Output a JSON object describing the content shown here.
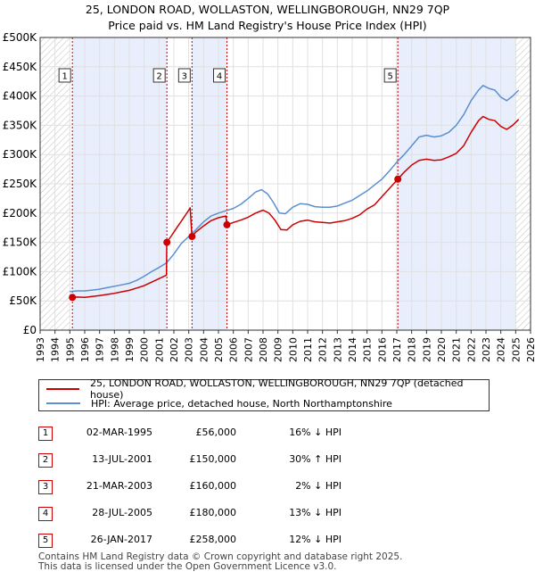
{
  "header": {
    "title": "25, LONDON ROAD, WOLLASTON, WELLINGBOROUGH, NN29 7QP",
    "subtitle": "Price paid vs. HM Land Registry's House Price Index (HPI)"
  },
  "chart_data": {
    "type": "line",
    "title": "25, LONDON ROAD, WOLLASTON, WELLINGBOROUGH, NN29 7QP",
    "subtitle": "Price paid vs. HM Land Registry's House Price Index (HPI)",
    "xlim": [
      1993,
      2026
    ],
    "ylim": [
      0,
      500000
    ],
    "x_ticks": [
      "1993",
      "1994",
      "1995",
      "1996",
      "1997",
      "1998",
      "1999",
      "2000",
      "2001",
      "2002",
      "2003",
      "2004",
      "2005",
      "2006",
      "2007",
      "2008",
      "2009",
      "2010",
      "2011",
      "2012",
      "2013",
      "2014",
      "2015",
      "2016",
      "2017",
      "2018",
      "2019",
      "2020",
      "2021",
      "2022",
      "2023",
      "2024",
      "2025",
      "2026"
    ],
    "y_ticks": [
      {
        "value": 0,
        "label": "£0"
      },
      {
        "value": 50000,
        "label": "£50K"
      },
      {
        "value": 100000,
        "label": "£100K"
      },
      {
        "value": 150000,
        "label": "£150K"
      },
      {
        "value": 200000,
        "label": "£200K"
      },
      {
        "value": 250000,
        "label": "£250K"
      },
      {
        "value": 300000,
        "label": "£300K"
      },
      {
        "value": 350000,
        "label": "£350K"
      },
      {
        "value": 400000,
        "label": "£400K"
      },
      {
        "value": 450000,
        "label": "£450K"
      },
      {
        "value": 500000,
        "label": "£500K"
      }
    ],
    "grid": true,
    "colors": {
      "property": "#cc0000",
      "hpi": "#5b8fd0",
      "shade": "#e8eefb",
      "hatch": "#bbbbbb"
    },
    "series": [
      {
        "name": "25, LONDON ROAD, WOLLASTON, WELLINGBOROUGH, NN29 7QP (detached house)",
        "color": "#cc0000",
        "points": [
          [
            1995.17,
            56000
          ],
          [
            1995.5,
            56500
          ],
          [
            1996.0,
            56000
          ],
          [
            1996.5,
            57500
          ],
          [
            1997.0,
            59000
          ],
          [
            1997.5,
            61000
          ],
          [
            1998.0,
            63000
          ],
          [
            1998.5,
            65500
          ],
          [
            1999.0,
            68000
          ],
          [
            1999.5,
            72000
          ],
          [
            2000.0,
            76000
          ],
          [
            2000.5,
            82000
          ],
          [
            2001.0,
            88000
          ],
          [
            2001.5,
            94000
          ],
          [
            2001.52,
            150000
          ],
          [
            2001.8,
            160000
          ],
          [
            2002.2,
            175000
          ],
          [
            2002.6,
            190000
          ],
          [
            2003.0,
            205000
          ],
          [
            2003.1,
            209000
          ],
          [
            2003.21,
            160000
          ],
          [
            2003.5,
            168000
          ],
          [
            2004.0,
            178000
          ],
          [
            2004.5,
            187000
          ],
          [
            2005.0,
            192000
          ],
          [
            2005.5,
            195000
          ],
          [
            2005.57,
            180000
          ],
          [
            2006.0,
            184000
          ],
          [
            2006.5,
            188000
          ],
          [
            2007.0,
            193000
          ],
          [
            2007.5,
            200000
          ],
          [
            2008.0,
            205000
          ],
          [
            2008.4,
            200000
          ],
          [
            2008.8,
            188000
          ],
          [
            2009.2,
            172000
          ],
          [
            2009.6,
            171000
          ],
          [
            2010.0,
            180000
          ],
          [
            2010.5,
            186000
          ],
          [
            2011.0,
            188000
          ],
          [
            2011.5,
            185000
          ],
          [
            2012.0,
            184000
          ],
          [
            2012.5,
            183000
          ],
          [
            2013.0,
            185000
          ],
          [
            2013.5,
            187000
          ],
          [
            2014.0,
            191000
          ],
          [
            2014.5,
            197000
          ],
          [
            2015.0,
            207000
          ],
          [
            2015.5,
            214000
          ],
          [
            2016.0,
            228000
          ],
          [
            2016.5,
            242000
          ],
          [
            2017.07,
            258000
          ],
          [
            2017.5,
            270000
          ],
          [
            2018.0,
            282000
          ],
          [
            2018.5,
            290000
          ],
          [
            2019.0,
            292000
          ],
          [
            2019.5,
            290000
          ],
          [
            2020.0,
            291000
          ],
          [
            2020.5,
            296000
          ],
          [
            2021.0,
            302000
          ],
          [
            2021.5,
            315000
          ],
          [
            2022.0,
            338000
          ],
          [
            2022.5,
            358000
          ],
          [
            2022.8,
            365000
          ],
          [
            2023.2,
            360000
          ],
          [
            2023.6,
            358000
          ],
          [
            2024.0,
            348000
          ],
          [
            2024.4,
            343000
          ],
          [
            2024.8,
            350000
          ],
          [
            2025.2,
            360000
          ]
        ]
      },
      {
        "name": "HPI: Average price, detached house, North Northamptonshire",
        "color": "#5b8fd0",
        "points": [
          [
            1995.0,
            66000
          ],
          [
            1995.5,
            67000
          ],
          [
            1996.0,
            67000
          ],
          [
            1996.5,
            68500
          ],
          [
            1997.0,
            70000
          ],
          [
            1997.5,
            72500
          ],
          [
            1998.0,
            75000
          ],
          [
            1998.5,
            77500
          ],
          [
            1999.0,
            80000
          ],
          [
            1999.5,
            85000
          ],
          [
            2000.0,
            92000
          ],
          [
            2000.5,
            100000
          ],
          [
            2001.0,
            107000
          ],
          [
            2001.5,
            115000
          ],
          [
            2002.0,
            130000
          ],
          [
            2002.5,
            148000
          ],
          [
            2003.0,
            160000
          ],
          [
            2003.5,
            172000
          ],
          [
            2004.0,
            185000
          ],
          [
            2004.5,
            195000
          ],
          [
            2005.0,
            200000
          ],
          [
            2005.5,
            204000
          ],
          [
            2006.0,
            208000
          ],
          [
            2006.5,
            215000
          ],
          [
            2007.0,
            225000
          ],
          [
            2007.5,
            236000
          ],
          [
            2007.9,
            240000
          ],
          [
            2008.3,
            233000
          ],
          [
            2008.7,
            218000
          ],
          [
            2009.1,
            200000
          ],
          [
            2009.5,
            199000
          ],
          [
            2010.0,
            210000
          ],
          [
            2010.5,
            216000
          ],
          [
            2011.0,
            215000
          ],
          [
            2011.5,
            211000
          ],
          [
            2012.0,
            210000
          ],
          [
            2012.5,
            210000
          ],
          [
            2013.0,
            212000
          ],
          [
            2013.5,
            217000
          ],
          [
            2014.0,
            222000
          ],
          [
            2014.5,
            230000
          ],
          [
            2015.0,
            238000
          ],
          [
            2015.5,
            248000
          ],
          [
            2016.0,
            258000
          ],
          [
            2016.5,
            272000
          ],
          [
            2017.0,
            287000
          ],
          [
            2017.5,
            300000
          ],
          [
            2018.0,
            315000
          ],
          [
            2018.5,
            330000
          ],
          [
            2019.0,
            333000
          ],
          [
            2019.5,
            330000
          ],
          [
            2020.0,
            332000
          ],
          [
            2020.5,
            338000
          ],
          [
            2021.0,
            350000
          ],
          [
            2021.5,
            368000
          ],
          [
            2022.0,
            392000
          ],
          [
            2022.5,
            410000
          ],
          [
            2022.8,
            418000
          ],
          [
            2023.2,
            413000
          ],
          [
            2023.6,
            410000
          ],
          [
            2024.0,
            398000
          ],
          [
            2024.4,
            392000
          ],
          [
            2024.8,
            400000
          ],
          [
            2025.2,
            410000
          ]
        ]
      }
    ],
    "sales": [
      {
        "n": "1",
        "x": 1995.17,
        "price": 56000
      },
      {
        "n": "2",
        "x": 2001.53,
        "price": 150000
      },
      {
        "n": "3",
        "x": 2003.22,
        "price": 160000
      },
      {
        "n": "4",
        "x": 2005.57,
        "price": 180000
      },
      {
        "n": "5",
        "x": 2017.07,
        "price": 258000
      }
    ],
    "hatched_ranges": [
      [
        1993,
        1995
      ],
      [
        2025,
        2026
      ]
    ],
    "shaded_ranges": [
      [
        1995.17,
        2001.53
      ],
      [
        2003.22,
        2005.57
      ],
      [
        2017.07,
        2025
      ]
    ]
  },
  "legend": {
    "property_label": "25, LONDON ROAD, WOLLASTON, WELLINGBOROUGH, NN29 7QP (detached house)",
    "hpi_label": "HPI: Average price, detached house, North Northamptonshire"
  },
  "sales_table": [
    {
      "n": "1",
      "date": "02-MAR-1995",
      "price": "£56,000",
      "hpi": "16% ↓ HPI"
    },
    {
      "n": "2",
      "date": "13-JUL-2001",
      "price": "£150,000",
      "hpi": "30% ↑ HPI"
    },
    {
      "n": "3",
      "date": "21-MAR-2003",
      "price": "£160,000",
      "hpi": "2% ↓ HPI"
    },
    {
      "n": "4",
      "date": "28-JUL-2005",
      "price": "£180,000",
      "hpi": "13% ↓ HPI"
    },
    {
      "n": "5",
      "date": "26-JAN-2017",
      "price": "£258,000",
      "hpi": "12% ↓ HPI"
    }
  ],
  "footer": {
    "line1": "Contains HM Land Registry data © Crown copyright and database right 2025.",
    "line2": "This data is licensed under the Open Government Licence v3.0."
  }
}
